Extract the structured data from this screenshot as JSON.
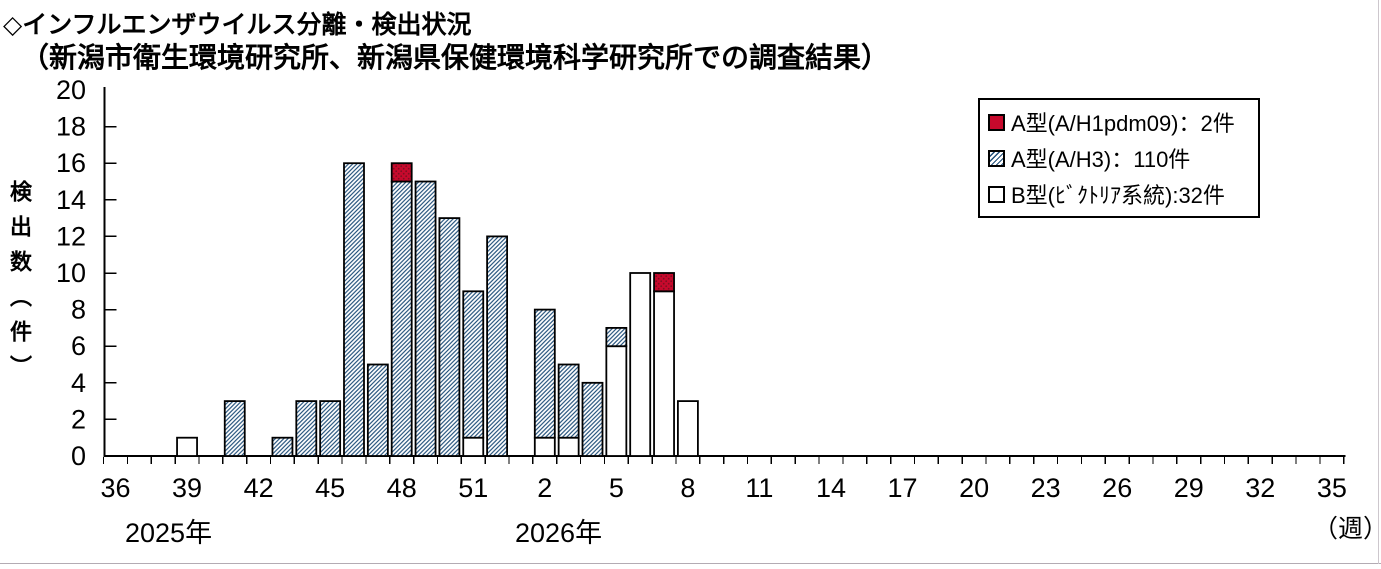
{
  "page": {
    "title": "◇インフルエンザウイルス分離・検出状況",
    "subtitle": "（新潟市衛生環境研究所、新潟県保健環境科学研究所での調査結果）"
  },
  "chart_data": {
    "type": "bar",
    "stacked": true,
    "title": "インフルエンザウイルス分離・検出状況",
    "ylabel": "検出数（件）",
    "week_unit_label": "（週）",
    "ylim": [
      0,
      20
    ],
    "ytick_step": 2,
    "x_axis_note": "weekly categories: week 36-52 of 2025 followed by week 1-35 of 2026",
    "x_tick_labels": [
      36,
      39,
      42,
      45,
      48,
      51,
      2,
      5,
      8,
      11,
      14,
      17,
      20,
      23,
      26,
      29,
      32,
      35
    ],
    "year_labels": [
      "2025年",
      "2026年"
    ],
    "grid": false,
    "legend_position": "top-right",
    "series": [
      {
        "key": "B",
        "name": "B型(ﾋﾞｸﾄﾘｱ系統)",
        "legend_label": "B型(ﾋﾞｸﾄﾘｱ系統):32件",
        "total": 32,
        "style": "white",
        "values_by_week": {
          "2025-39": 1,
          "2025-51": 1,
          "2026-2": 1,
          "2026-3": 1,
          "2026-5": 6,
          "2026-6": 10,
          "2026-7": 9,
          "2026-8": 3
        }
      },
      {
        "key": "H3",
        "name": "A型(A/H3)",
        "legend_label": "A型(A/H3)：110件",
        "total": 110,
        "style": "hatch",
        "values_by_week": {
          "2025-41": 3,
          "2025-43": 1,
          "2025-44": 3,
          "2025-45": 3,
          "2025-46": 16,
          "2025-47": 5,
          "2025-48": 15,
          "2025-49": 15,
          "2025-50": 13,
          "2025-51": 8,
          "2025-52": 12,
          "2026-2": 7,
          "2026-3": 4,
          "2026-4": 4,
          "2026-5": 1
        }
      },
      {
        "key": "H1",
        "name": "A型(A/H1pdm09)",
        "legend_label": "A型(A/H1pdm09)：2件",
        "total": 2,
        "style": "red",
        "values_by_week": {
          "2025-48": 1,
          "2026-7": 1
        }
      }
    ],
    "stack_order_bottom_to_top": [
      "B",
      "H3",
      "H1"
    ],
    "legend_order_top_to_bottom": [
      "H1",
      "H3",
      "B"
    ],
    "colors": {
      "red_fill": "#C7092C",
      "red_dot": "#7E0E22",
      "hatch_line": "#1F4E79",
      "bar_border": "#000000",
      "axis": "#000000",
      "text": "#000000",
      "page_divider": "#b3abb3"
    }
  }
}
